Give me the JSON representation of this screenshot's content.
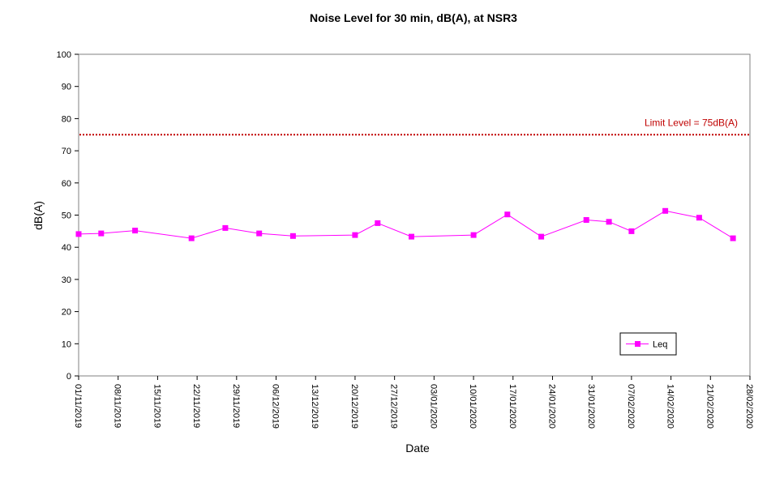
{
  "chart_data": {
    "type": "line",
    "title": "Noise Level for 30 min,  dB(A), at NSR3",
    "xlabel": "Date",
    "ylabel": "dB(A)",
    "ylim": [
      0,
      100
    ],
    "yticks": [
      0,
      10,
      20,
      30,
      40,
      50,
      60,
      70,
      80,
      90,
      100
    ],
    "xlim": [
      "2019-11-01",
      "2020-02-28"
    ],
    "xtick_labels": [
      "01/11/2019",
      "08/11/2019",
      "15/11/2019",
      "22/11/2019",
      "29/11/2019",
      "06/12/2019",
      "13/12/2019",
      "20/12/2019",
      "27/12/2019",
      "03/01/2020",
      "10/01/2020",
      "17/01/2020",
      "24/01/2020",
      "31/01/2020",
      "07/02/2020",
      "14/02/2020",
      "21/02/2020",
      "28/02/2020"
    ],
    "grid": false,
    "legend_position": "bottom-right",
    "series": [
      {
        "name": "Leq",
        "color": "#ff00ff",
        "marker": "square",
        "x": [
          "2019-11-01",
          "2019-11-05",
          "2019-11-11",
          "2019-11-21",
          "2019-11-27",
          "2019-12-03",
          "2019-12-09",
          "2019-12-20",
          "2019-12-24",
          "2019-12-30",
          "2020-01-10",
          "2020-01-16",
          "2020-01-22",
          "2020-01-30",
          "2020-02-03",
          "2020-02-07",
          "2020-02-13",
          "2020-02-19",
          "2020-02-25"
        ],
        "y": [
          44.1,
          44.3,
          45.2,
          42.8,
          46.0,
          44.3,
          43.5,
          43.8,
          47.5,
          43.3,
          43.8,
          50.2,
          43.3,
          48.5,
          47.9,
          45.0,
          51.3,
          49.2,
          42.8
        ]
      }
    ],
    "reference_lines": [
      {
        "label": "Limit Level  = 75dB(A)",
        "y": 75,
        "color": "#c00000",
        "style": "dotted"
      }
    ]
  }
}
